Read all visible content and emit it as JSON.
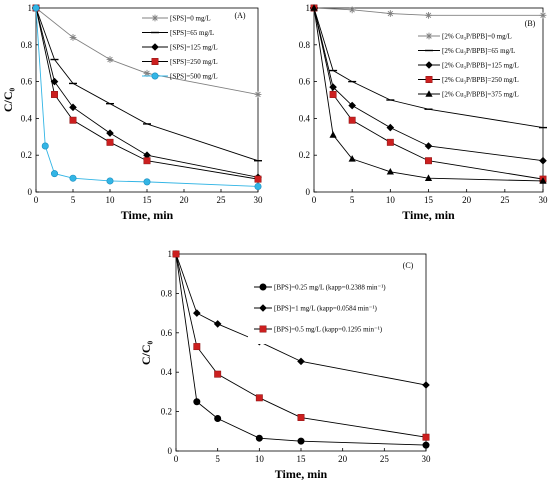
{
  "chart_data": [
    {
      "type": "line",
      "panel_label": "(A)",
      "xlabel": "Time, min",
      "ylabel": "C/C₀",
      "xlim": [
        0,
        30
      ],
      "ylim": [
        0,
        1
      ],
      "xticks": [
        0,
        5,
        10,
        15,
        20,
        25,
        30
      ],
      "yticks": [
        0,
        0.2,
        0.4,
        0.6,
        0.8,
        1
      ],
      "legend_position": "top-right",
      "grid": false,
      "series": [
        {
          "name": "[SPS]=0 mg/L",
          "marker": "star",
          "color": "#808080",
          "x": [
            0,
            5,
            10,
            15,
            30
          ],
          "y": [
            1,
            0.84,
            0.72,
            0.645,
            0.53
          ]
        },
        {
          "name": "[SPS]=65 mg/L",
          "marker": "dash",
          "color": "#000000",
          "x": [
            0,
            2.5,
            5,
            10,
            15,
            30
          ],
          "y": [
            1,
            0.72,
            0.59,
            0.48,
            0.37,
            0.17
          ]
        },
        {
          "name": "[SPS]=125 mg/L",
          "marker": "diamond",
          "color": "#000000",
          "x": [
            0,
            2.5,
            5,
            10,
            15,
            30
          ],
          "y": [
            1,
            0.6,
            0.46,
            0.32,
            0.2,
            0.08
          ]
        },
        {
          "name": "[SPS]=250 mg/L",
          "marker": "square",
          "color": "#cc1f1f",
          "x": [
            0,
            2.5,
            5,
            10,
            15,
            30
          ],
          "y": [
            1,
            0.53,
            0.39,
            0.27,
            0.17,
            0.07
          ]
        },
        {
          "name": "[SPS]=500 mg/L",
          "marker": "circle",
          "color": "#33b5e5",
          "x": [
            0,
            1.25,
            2.5,
            5,
            10,
            15,
            30
          ],
          "y": [
            1,
            0.25,
            0.1,
            0.075,
            0.06,
            0.055,
            0.03
          ]
        }
      ]
    },
    {
      "type": "line",
      "panel_label": "(B)",
      "xlabel": "Time, min",
      "ylabel": "",
      "xlim": [
        0,
        30
      ],
      "ylim": [
        0,
        1
      ],
      "xticks": [
        0,
        5,
        10,
        15,
        20,
        25,
        30
      ],
      "yticks": [
        0,
        0.2,
        0.4,
        0.6,
        0.8,
        1
      ],
      "legend_position": "top-right",
      "grid": false,
      "series": [
        {
          "name": "[2% Cu₃P/BPB]=0 mg/L",
          "marker": "star",
          "color": "#808080",
          "x": [
            0,
            5,
            10,
            15,
            30
          ],
          "y": [
            1,
            0.99,
            0.97,
            0.96,
            0.96
          ]
        },
        {
          "name": "[2% Cu₃P/BPB]=65 mg/L",
          "marker": "dash",
          "color": "#000000",
          "x": [
            0,
            2.5,
            5,
            10,
            15,
            30
          ],
          "y": [
            1,
            0.66,
            0.6,
            0.5,
            0.45,
            0.35
          ]
        },
        {
          "name": "[2% Cu₃P/BPB]=125 mg/L",
          "marker": "diamond",
          "color": "#000000",
          "x": [
            0,
            2.5,
            5,
            10,
            15,
            30
          ],
          "y": [
            1,
            0.57,
            0.47,
            0.35,
            0.25,
            0.17
          ]
        },
        {
          "name": "[2% Cu₃P/BPB]=250 mg/L",
          "marker": "square",
          "color": "#cc1f1f",
          "x": [
            0,
            2.5,
            5,
            10,
            15,
            30
          ],
          "y": [
            1,
            0.53,
            0.39,
            0.27,
            0.17,
            0.07
          ]
        },
        {
          "name": "[2% Cu₃P/BPB]=375 mg/L",
          "marker": "triangle",
          "color": "#000000",
          "x": [
            0,
            2.5,
            5,
            10,
            15,
            30
          ],
          "y": [
            1,
            0.31,
            0.18,
            0.11,
            0.075,
            0.06
          ]
        }
      ]
    },
    {
      "type": "line",
      "panel_label": "(C)",
      "xlabel": "Time, min",
      "ylabel": "C/C₀",
      "xlim": [
        0,
        30
      ],
      "ylim": [
        0,
        1
      ],
      "xticks": [
        0,
        5,
        10,
        15,
        20,
        25,
        30
      ],
      "yticks": [
        0,
        0.2,
        0.4,
        0.6,
        0.8,
        1
      ],
      "legend_position": "top-right",
      "grid": false,
      "series": [
        {
          "name": "[BPS]=0.25 mg/L (kapp=0.2388 min⁻¹)",
          "marker": "circle",
          "color": "#000000",
          "x": [
            0,
            2.5,
            5,
            10,
            15,
            30
          ],
          "y": [
            1,
            0.25,
            0.165,
            0.065,
            0.05,
            0.03
          ]
        },
        {
          "name": "[BPS]=1 mg/L (kapp=0.0584 min⁻¹)",
          "marker": "diamond",
          "color": "#000000",
          "x": [
            0,
            2.5,
            5,
            10,
            15,
            30
          ],
          "y": [
            1,
            0.7,
            0.645,
            0.555,
            0.455,
            0.335
          ]
        },
        {
          "name": "[BPS]=0.5 mg/L (kapp=0.1295 min⁻¹)",
          "marker": "square",
          "color": "#cc1f1f",
          "x": [
            0,
            2.5,
            5,
            10,
            15,
            30
          ],
          "y": [
            1,
            0.53,
            0.39,
            0.27,
            0.17,
            0.07
          ]
        }
      ]
    }
  ]
}
